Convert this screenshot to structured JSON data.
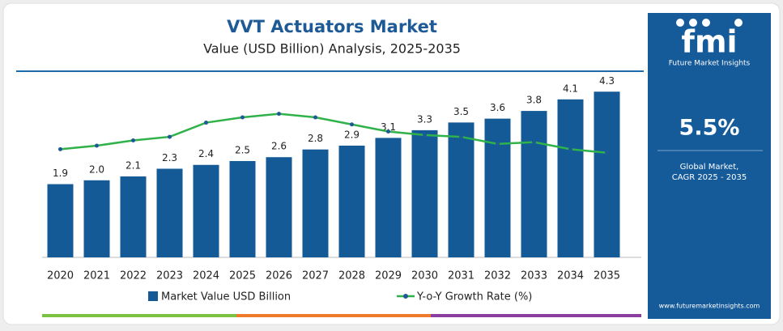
{
  "chart_data": {
    "type": "bar",
    "title": "VVT Actuators Market",
    "subtitle": "Value (USD Billion) Analysis, 2025-2035",
    "categories": [
      "2020",
      "2021",
      "2022",
      "2023",
      "2024",
      "2025",
      "2026",
      "2027",
      "2028",
      "2029",
      "2030",
      "2031",
      "2032",
      "2033",
      "2034",
      "2035"
    ],
    "series": [
      {
        "name": "Market Value USD Billion",
        "type": "bar",
        "color": "#135a97",
        "values": [
          1.9,
          2.0,
          2.1,
          2.3,
          2.4,
          2.5,
          2.6,
          2.8,
          2.9,
          3.1,
          3.3,
          3.5,
          3.6,
          3.8,
          4.1,
          4.3
        ],
        "value_labels": [
          "1.9",
          "2.0",
          "2.1",
          "2.3",
          "2.4",
          "2.5",
          "2.6",
          "2.8",
          "2.9",
          "3.1",
          "3.3",
          "3.5",
          "3.6",
          "3.8",
          "4.1",
          "4.3"
        ]
      },
      {
        "name": "Y-o-Y Growth Rate (%)",
        "type": "line",
        "color": "#2fb24a",
        "axis": "y2",
        "values": [
          6.1,
          6.3,
          6.6,
          6.8,
          7.6,
          7.9,
          8.1,
          7.9,
          7.5,
          7.1,
          6.9,
          6.8,
          6.4,
          6.5,
          6.1,
          5.9
        ]
      }
    ],
    "ylim": [
      0,
      4.6
    ],
    "y2lim": [
      0,
      10
    ],
    "legend": "bottom"
  },
  "sidebar": {
    "logo": "fmi",
    "brand": "Future Market Insights",
    "cagr": "5.5%",
    "caption_line1": "Global Market,",
    "caption_line2": "CAGR 2025 - 2035",
    "url": "www.futuremarketinsights.com"
  }
}
